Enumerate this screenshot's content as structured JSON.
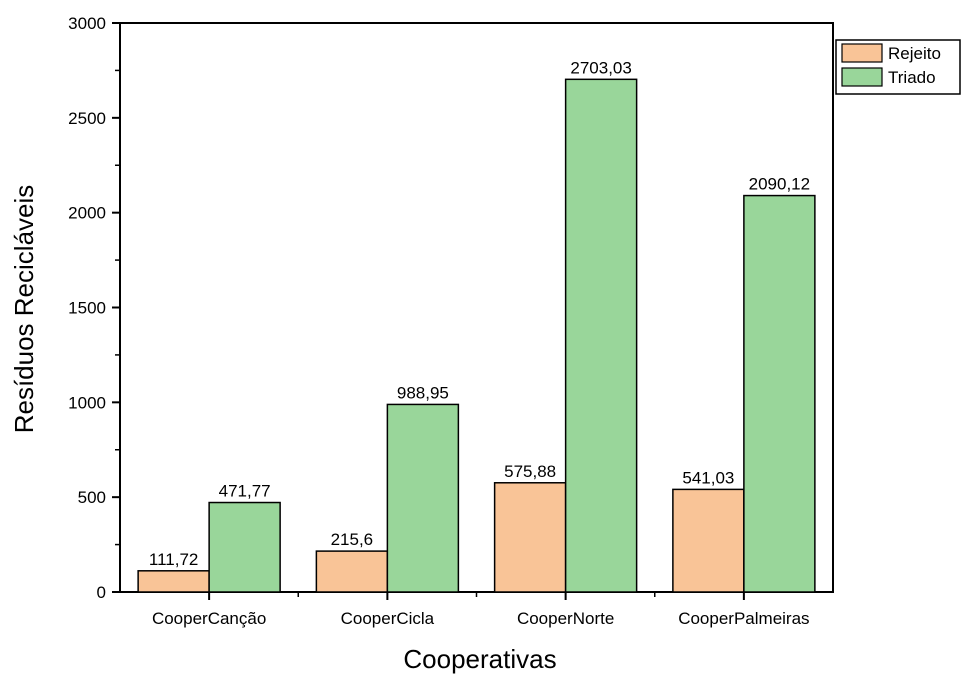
{
  "chart_data": {
    "type": "bar",
    "categories": [
      "CooperCanção",
      "CooperCicla",
      "CooperNorte",
      "CooperPalmeiras"
    ],
    "series": [
      {
        "name": "Rejeito",
        "values": [
          111.72,
          215.6,
          575.88,
          541.03
        ],
        "labels": [
          "111,72",
          "215,6",
          "575,88",
          "541,03"
        ],
        "color": "#F9C497"
      },
      {
        "name": "Triado",
        "values": [
          471.77,
          988.95,
          2703.03,
          2090.12
        ],
        "labels": [
          "471,77",
          "988,95",
          "2703,03",
          "2090,12"
        ],
        "color": "#99D69A"
      }
    ],
    "title": "",
    "xlabel": "Cooperativas",
    "ylabel": "Resíduos Recicláveis",
    "ylim": [
      0,
      3000
    ],
    "yticks": [
      0,
      500,
      1000,
      1500,
      2000,
      2500,
      3000
    ],
    "grid": false,
    "legend_position": "top-right"
  }
}
